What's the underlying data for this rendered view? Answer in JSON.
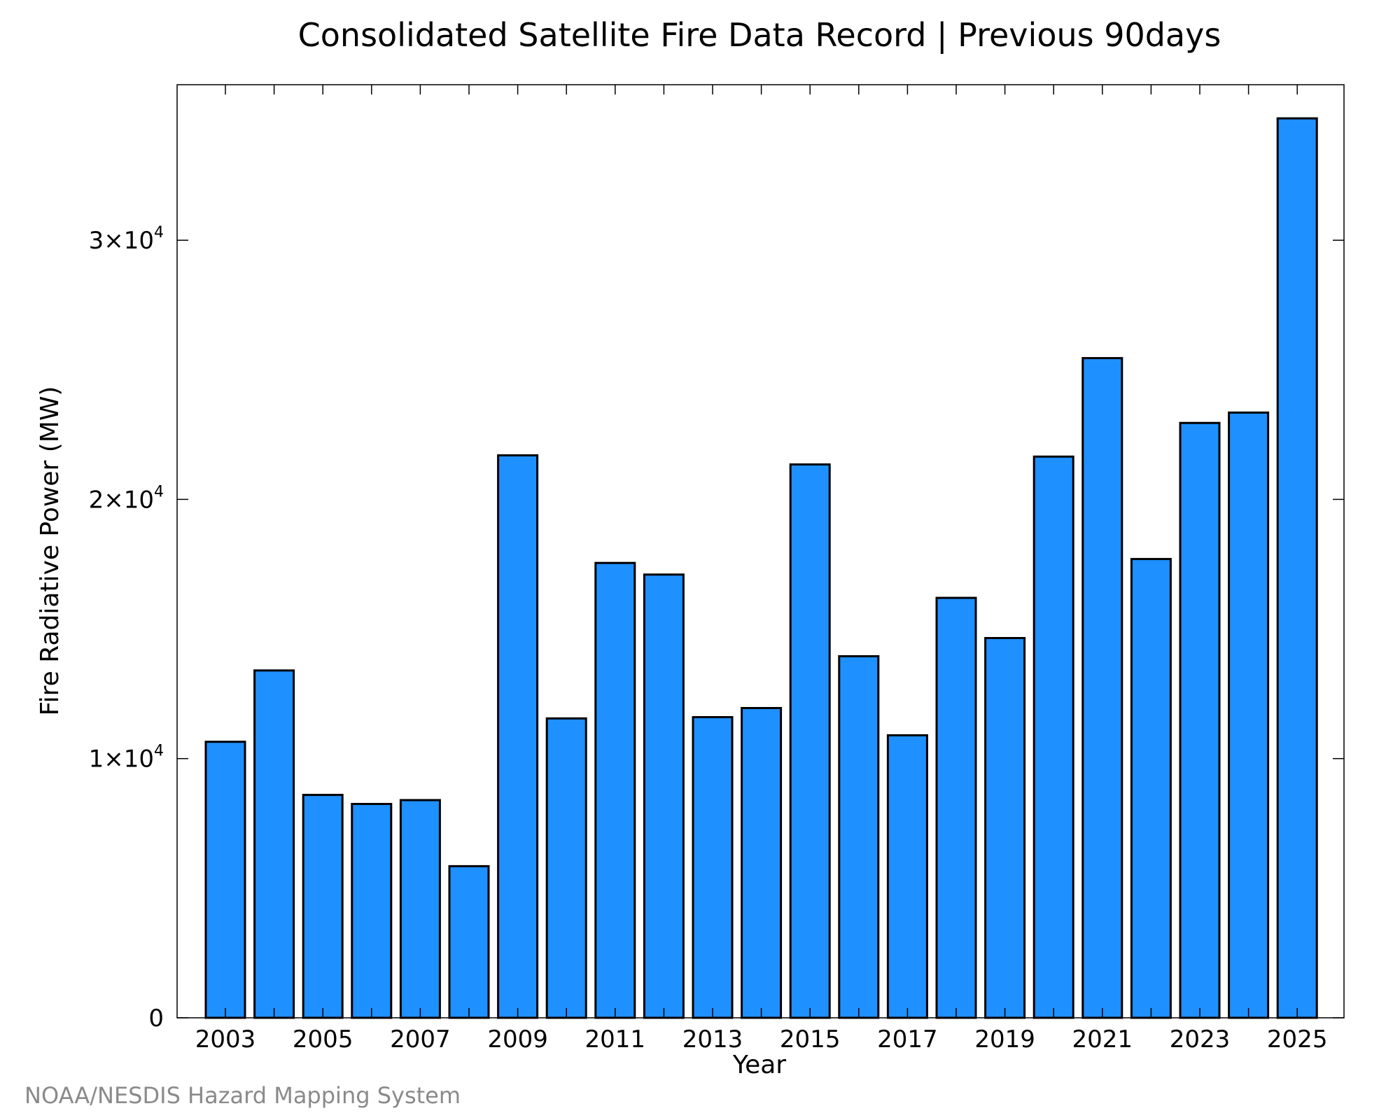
{
  "chart_data": {
    "type": "bar",
    "title": "Consolidated Satellite Fire Data Record | Previous 90days",
    "xlabel": "Year",
    "ylabel": "Fire Radiative Power (MW)",
    "categories": [
      "2003",
      "2004",
      "2005",
      "2006",
      "2007",
      "2008",
      "2009",
      "2010",
      "2011",
      "2012",
      "2013",
      "2014",
      "2015",
      "2016",
      "2017",
      "2018",
      "2019",
      "2020",
      "2021",
      "2022",
      "2023",
      "2024",
      "2025"
    ],
    "values": [
      10650,
      13400,
      8600,
      8250,
      8400,
      5850,
      21700,
      11550,
      17550,
      17100,
      11600,
      11950,
      21350,
      13950,
      10900,
      16200,
      14650,
      21650,
      25450,
      17700,
      22950,
      23350,
      34700
    ],
    "x_tick_labels": [
      "2003",
      "2005",
      "2007",
      "2009",
      "2011",
      "2013",
      "2015",
      "2017",
      "2019",
      "2021",
      "2023",
      "2025"
    ],
    "y_ticks": [
      {
        "value": 0,
        "mantissa": "0",
        "exponent": ""
      },
      {
        "value": 10000,
        "mantissa": "1×10",
        "exponent": "4"
      },
      {
        "value": 20000,
        "mantissa": "2×10",
        "exponent": "4"
      },
      {
        "value": 30000,
        "mantissa": "3×10",
        "exponent": "4"
      }
    ],
    "ylim": [
      0,
      36000
    ],
    "bar_color": "#1e90ff",
    "grid": false,
    "legend": "none"
  },
  "credit": "NOAA/NESDIS Hazard Mapping System"
}
